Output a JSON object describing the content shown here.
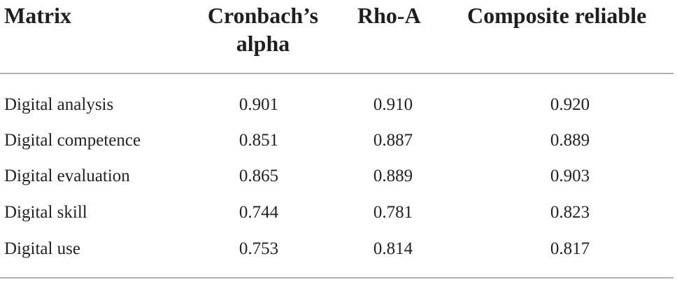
{
  "table": {
    "headers": {
      "matrix": "Matrix",
      "alpha_line1": "Cronbach’s",
      "alpha_line2": "alpha",
      "rho": "Rho-A",
      "composite": "Composite reliable"
    },
    "rows": [
      {
        "label": "Digital analysis",
        "alpha": "0.901",
        "rho": "0.910",
        "composite": "0.920"
      },
      {
        "label": "Digital competence",
        "alpha": "0.851",
        "rho": "0.887",
        "composite": "0.889"
      },
      {
        "label": "Digital evaluation",
        "alpha": "0.865",
        "rho": "0.889",
        "composite": "0.903"
      },
      {
        "label": "Digital skill",
        "alpha": "0.744",
        "rho": "0.781",
        "composite": "0.823"
      },
      {
        "label": "Digital use",
        "alpha": "0.753",
        "rho": "0.814",
        "composite": "0.817"
      }
    ]
  }
}
